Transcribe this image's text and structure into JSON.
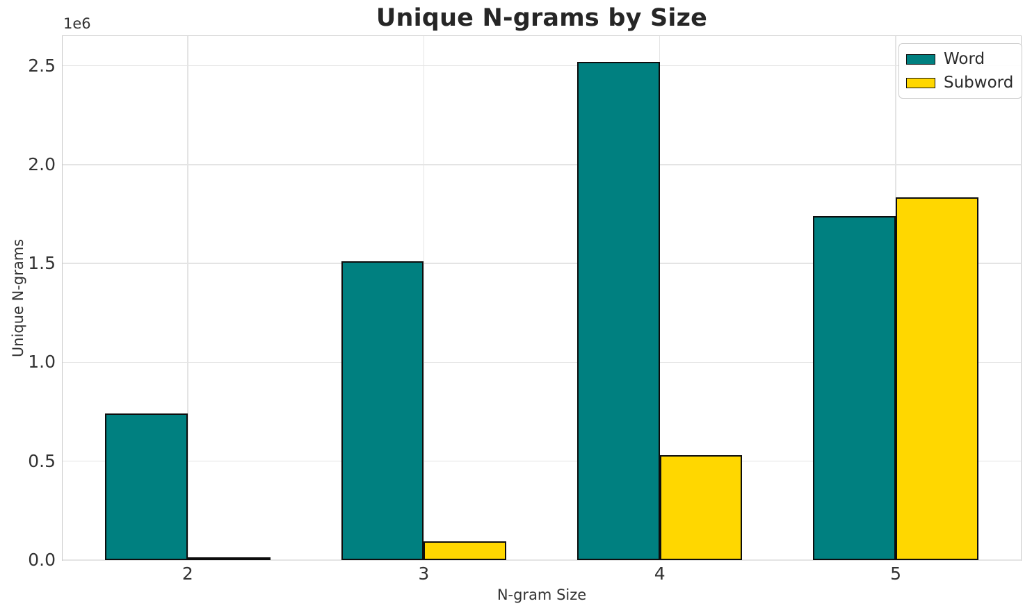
{
  "chart_data": {
    "type": "bar",
    "title": "Unique N-grams by Size",
    "xlabel": "N-gram Size",
    "ylabel": "Unique N-grams",
    "y_offset_text": "1e6",
    "categories": [
      "2",
      "3",
      "4",
      "5"
    ],
    "x": [
      2,
      3,
      4,
      5
    ],
    "series": [
      {
        "name": "Word",
        "color": "#008080",
        "values": [
          740000,
          1510000,
          2520000,
          1740000
        ]
      },
      {
        "name": "Subword",
        "color": "#FFD700",
        "values": [
          15000,
          95000,
          530000,
          1835000
        ]
      }
    ],
    "bar_width": 0.35,
    "bar_edge_color": "#0d0d0d",
    "xlim": [
      1.47,
      5.53
    ],
    "ylim": [
      0,
      2650000
    ],
    "yticks": [
      0.0,
      0.5,
      1.0,
      1.5,
      2.0,
      2.5
    ],
    "ytick_labels": [
      "0.0",
      "0.5",
      "1.0",
      "1.5",
      "2.0",
      "2.5"
    ],
    "xtick_labels": [
      "2",
      "3",
      "4",
      "5"
    ],
    "grid": true,
    "legend_position": "upper right",
    "legend_labels": [
      "Word",
      "Subword"
    ]
  }
}
